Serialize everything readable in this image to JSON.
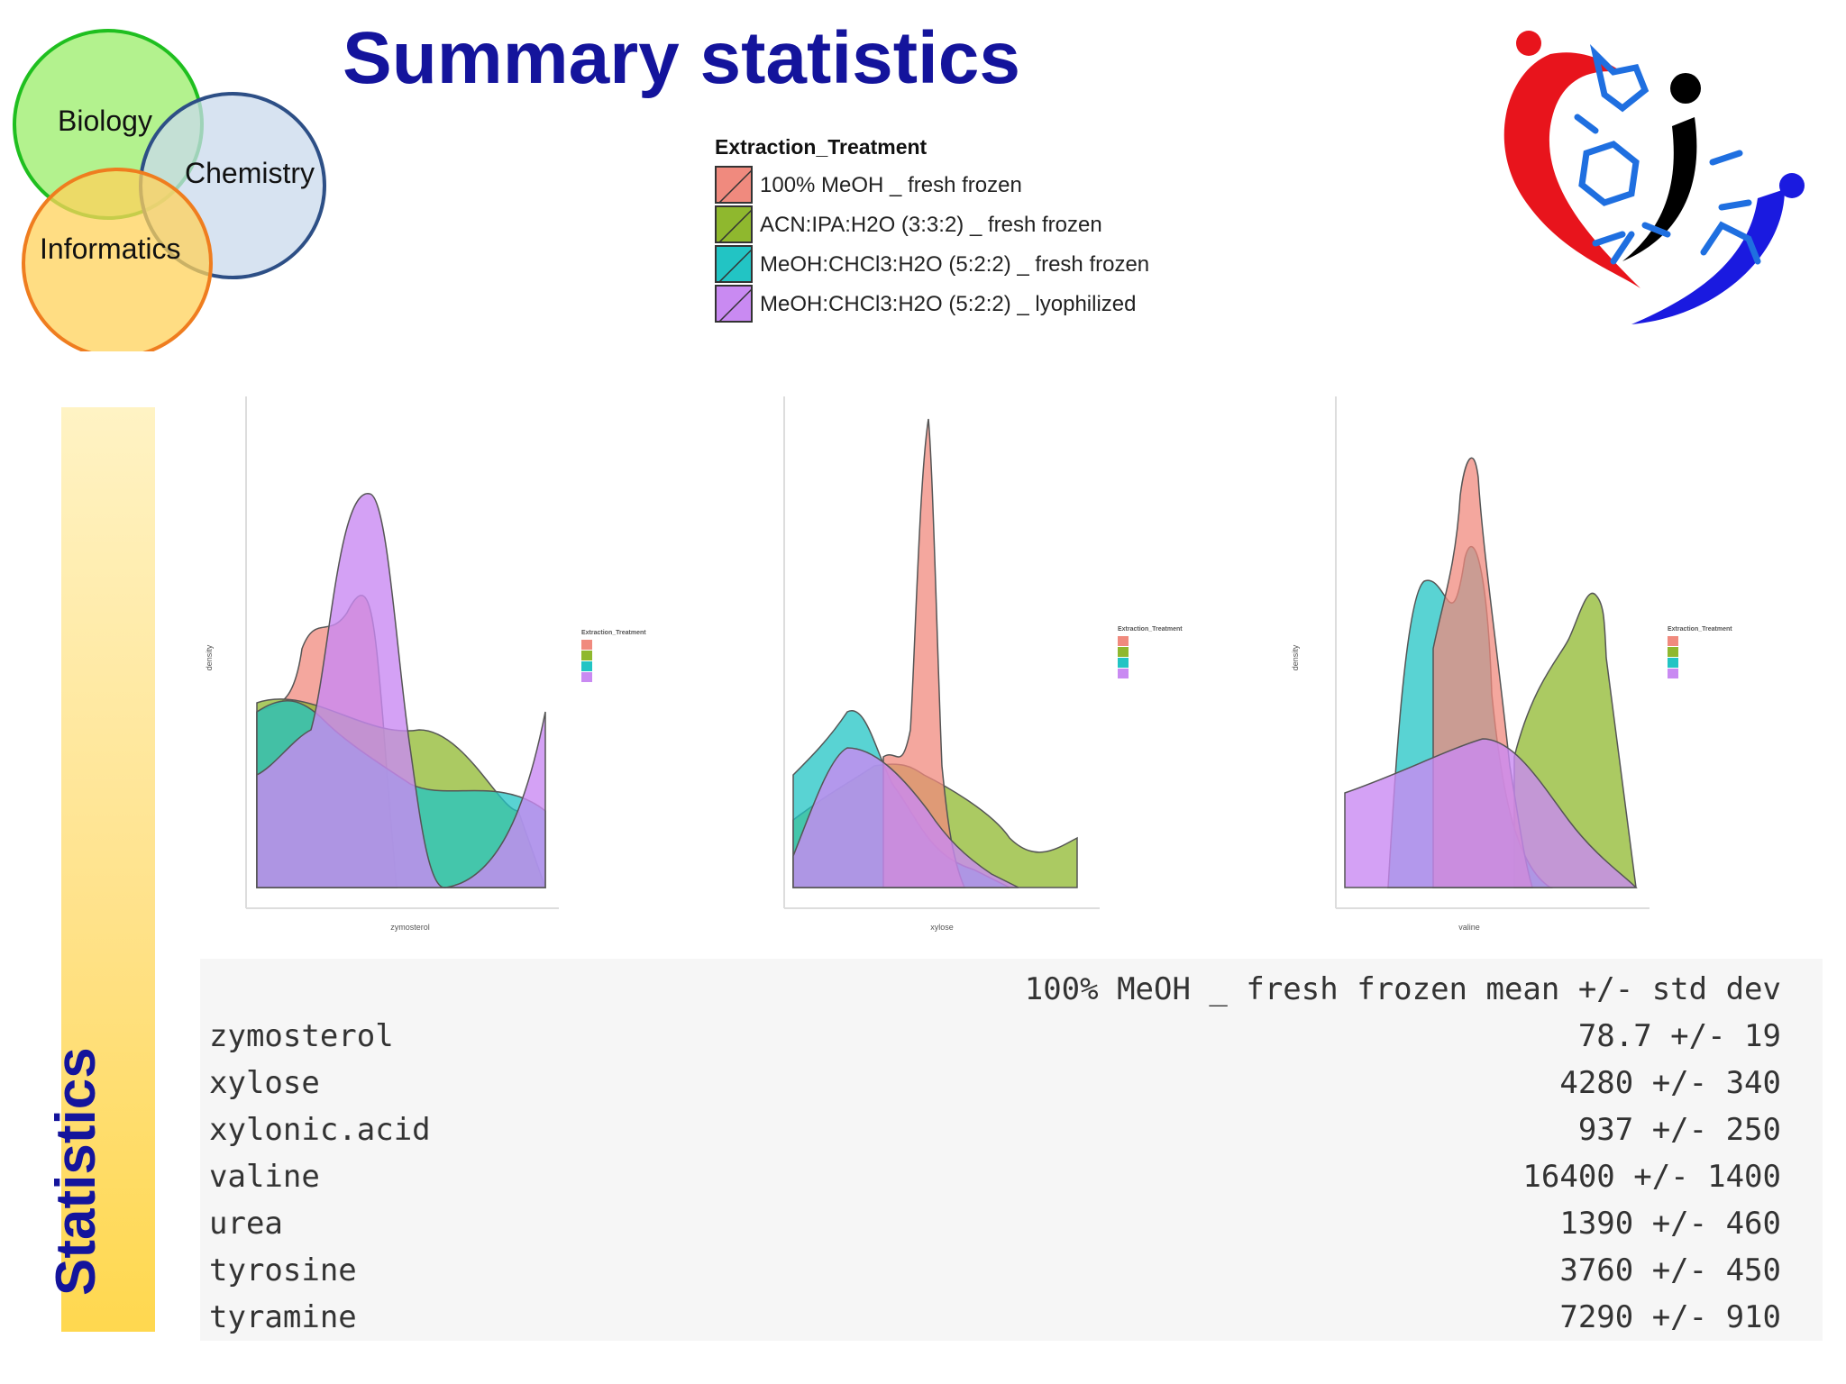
{
  "slide": {
    "title": "Summary statistics",
    "side_label": "Statistics"
  },
  "venn": {
    "labels": [
      "Biology",
      "Chemistry",
      "Informatics"
    ],
    "colors": {
      "biology": "#a6f07a",
      "chemistry": "#c9d9ec",
      "informatics": "#ffd25a"
    }
  },
  "legend": {
    "title": "Extraction_Treatment",
    "items": [
      {
        "label": "100% MeOH _ fresh frozen",
        "color": "#f08a7e"
      },
      {
        "label": "ACN:IPA:H2O (3:3:2) _ fresh frozen",
        "color": "#8fb82e"
      },
      {
        "label": "MeOH:CHCl3:H2O (5:2:2) _ fresh frozen",
        "color": "#22c4c4"
      },
      {
        "label": "MeOH:CHCl3:H2O (5:2:2) _ lyophilized",
        "color": "#c98af2"
      }
    ]
  },
  "chart_data": [
    {
      "type": "area",
      "xlabel": "zymosterol",
      "ylabel": "density",
      "series": [
        {
          "name": "100% MeOH _ fresh frozen",
          "color": "#f08a7e"
        },
        {
          "name": "ACN:IPA:H2O (3:3:2) _ fresh frozen",
          "color": "#8fb82e"
        },
        {
          "name": "MeOH:CHCl3:H2O (5:2:2) _ fresh frozen",
          "color": "#22c4c4"
        },
        {
          "name": "MeOH:CHCl3:H2O (5:2:2) _ lyophilized",
          "color": "#c98af2"
        }
      ]
    },
    {
      "type": "area",
      "xlabel": "xylose",
      "ylabel": "",
      "series": [
        {
          "name": "100% MeOH _ fresh frozen",
          "color": "#f08a7e"
        },
        {
          "name": "ACN:IPA:H2O (3:3:2) _ fresh frozen",
          "color": "#8fb82e"
        },
        {
          "name": "MeOH:CHCl3:H2O (5:2:2) _ fresh frozen",
          "color": "#22c4c4"
        },
        {
          "name": "MeOH:CHCl3:H2O (5:2:2) _ lyophilized",
          "color": "#c98af2"
        }
      ]
    },
    {
      "type": "area",
      "xlabel": "valine",
      "ylabel": "density",
      "series": [
        {
          "name": "100% MeOH _ fresh frozen",
          "color": "#f08a7e"
        },
        {
          "name": "ACN:IPA:H2O (3:3:2) _ fresh frozen",
          "color": "#8fb82e"
        },
        {
          "name": "MeOH:CHCl3:H2O (5:2:2) _ fresh frozen",
          "color": "#22c4c4"
        },
        {
          "name": "MeOH:CHCl3:H2O (5:2:2) _ lyophilized",
          "color": "#c98af2"
        }
      ]
    },
    {
      "type": "table",
      "header": "100% MeOH _ fresh frozen mean +/- std dev",
      "rows": [
        {
          "name": "zymosterol",
          "value": "78.7 +/- 19"
        },
        {
          "name": "xylose",
          "value": "4280 +/- 340"
        },
        {
          "name": "xylonic.acid",
          "value": "937 +/- 250"
        },
        {
          "name": "valine",
          "value": "16400 +/- 1400"
        },
        {
          "name": "urea",
          "value": "1390 +/- 460"
        },
        {
          "name": "tyrosine",
          "value": "3760 +/- 450"
        },
        {
          "name": "tyramine",
          "value": "7290 +/- 910"
        }
      ]
    }
  ],
  "stats": {
    "header": "100% MeOH _ fresh frozen mean +/- std dev",
    "rows": [
      {
        "name": "zymosterol",
        "value": "78.7 +/- 19"
      },
      {
        "name": "xylose",
        "value": "4280 +/- 340"
      },
      {
        "name": "xylonic.acid",
        "value": "937 +/- 250"
      },
      {
        "name": "valine",
        "value": "16400 +/- 1400"
      },
      {
        "name": "urea",
        "value": "1390 +/- 460"
      },
      {
        "name": "tyrosine",
        "value": "3760 +/- 450"
      },
      {
        "name": "tyramine",
        "value": "7290 +/- 910"
      }
    ]
  }
}
